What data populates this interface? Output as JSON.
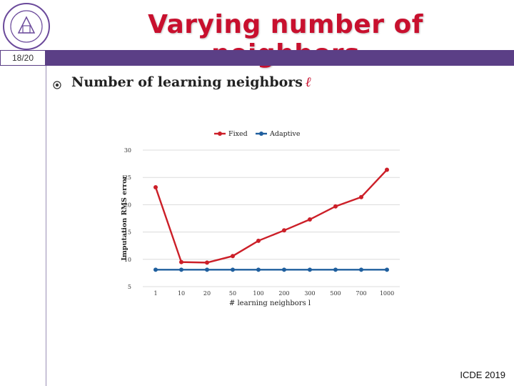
{
  "slide": {
    "title": "Varying number of neighbors",
    "page_number": "18/20",
    "bullet_heading": "Number of learning neighbors",
    "bullet_symbol": "ℓ",
    "footer": "ICDE 2019",
    "colors": {
      "title": "#c8102e",
      "bar": "#5b3f86"
    }
  },
  "chart_data": {
    "type": "line",
    "categories": [
      "1",
      "10",
      "20",
      "50",
      "100",
      "200",
      "300",
      "500",
      "700",
      "1000"
    ],
    "series": [
      {
        "name": "Fixed",
        "color": "#cc1f28",
        "values": [
          23.2,
          9.5,
          9.4,
          10.6,
          13.4,
          15.3,
          17.3,
          19.7,
          21.4,
          26.4
        ]
      },
      {
        "name": "Adaptive",
        "color": "#1f5f9e",
        "values": [
          8.1,
          8.1,
          8.1,
          8.1,
          8.1,
          8.1,
          8.1,
          8.1,
          8.1,
          8.1
        ]
      }
    ],
    "yticks": [
      "5",
      "10",
      "15",
      "20",
      "25",
      "30"
    ],
    "ylim": [
      5,
      30
    ],
    "xlabel": "# learning neighbors l",
    "ylabel": "Imputation RMS error",
    "grid": "horizontal",
    "legend": "top"
  }
}
